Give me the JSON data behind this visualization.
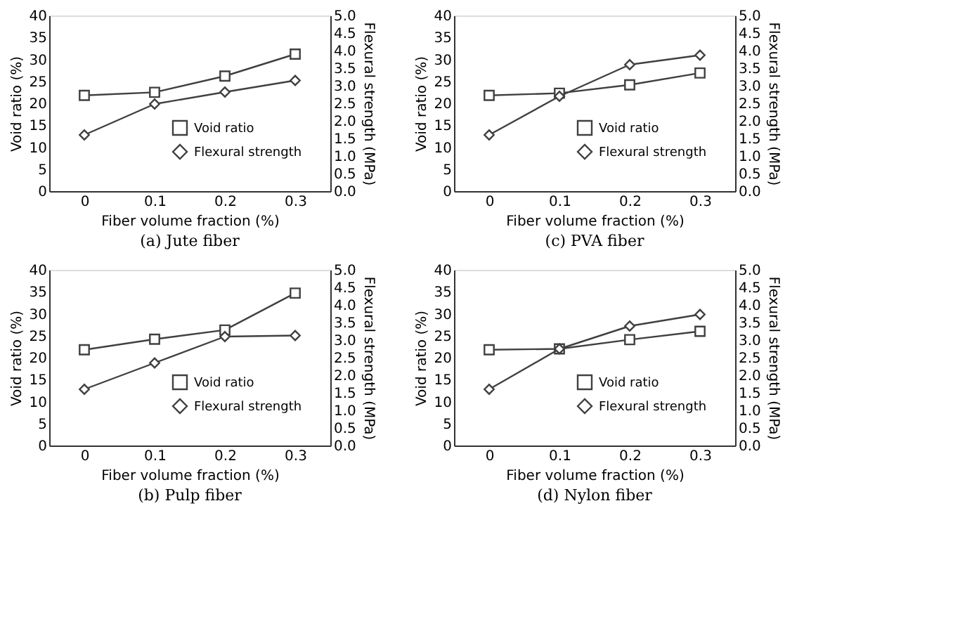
{
  "chart_data": [
    {
      "type": "line",
      "title": "(a) Jute fiber",
      "xlabel": "Fiber volume fraction (%)",
      "ylabel": "Void ratio (%)",
      "y2label": "Flexural strength (MPa)",
      "categories": [
        "0",
        "0.1",
        "0.2",
        "0.3"
      ],
      "ylim": [
        0,
        40
      ],
      "yticks": [
        0,
        5,
        10,
        15,
        20,
        25,
        30,
        35,
        40
      ],
      "y2lim": [
        0,
        5
      ],
      "y2ticks": [
        {
          "value": 0,
          "label": "0.0"
        },
        0.5,
        {
          "value": 1,
          "label": "1.0"
        },
        1.5,
        {
          "value": 2,
          "label": "2.0"
        },
        2.5,
        {
          "value": 3,
          "label": "3.0"
        },
        3.5,
        {
          "value": 4,
          "label": "4.0"
        },
        4.5,
        {
          "value": 5,
          "label": "5.0"
        }
      ],
      "grid": false,
      "legend": "bottom right",
      "series": [
        {
          "name": "Void ratio",
          "color": "#404040",
          "marker": "square",
          "values": [
            21.8,
            22.5,
            26.2,
            31.2
          ]
        },
        {
          "name": "Flexural strength",
          "color": "#404040",
          "marker": "diamond",
          "axis": "y2",
          "values": [
            1.6,
            2.48,
            2.82,
            3.15
          ]
        }
      ]
    },
    {
      "type": "line",
      "title": "(c) PVA fiber",
      "xlabel": "Fiber volume fraction (%)",
      "ylabel": "Void ratio (%)",
      "y2label": "Flexural strength (MPa)",
      "categories": [
        "0",
        "0.1",
        "0.2",
        "0.3"
      ],
      "ylim": [
        0,
        40
      ],
      "yticks": [
        0,
        5,
        10,
        15,
        20,
        25,
        30,
        35,
        40
      ],
      "y2lim": [
        0,
        5
      ],
      "y2ticks": [
        {
          "value": 0,
          "label": "0.0"
        },
        0.5,
        {
          "value": 1,
          "label": "1.0"
        },
        1.5,
        {
          "value": 2,
          "label": "2.0"
        },
        2.5,
        {
          "value": 3,
          "label": "3.0"
        },
        3.5,
        {
          "value": 4,
          "label": "4.0"
        },
        4.5,
        {
          "value": 5,
          "label": "5.0"
        }
      ],
      "grid": false,
      "legend": "bottom right",
      "series": [
        {
          "name": "Void ratio",
          "color": "#404040",
          "marker": "square",
          "values": [
            21.8,
            22.3,
            24.2,
            26.9
          ]
        },
        {
          "name": "Flexural strength",
          "color": "#404040",
          "marker": "diamond",
          "axis": "y2",
          "values": [
            1.6,
            2.7,
            3.6,
            3.87
          ]
        }
      ]
    },
    {
      "type": "line",
      "title": "(b) Pulp fiber",
      "xlabel": "Fiber volume fraction (%)",
      "ylabel": "Void ratio (%)",
      "y2label": "Flexural strength (MPa)",
      "categories": [
        "0",
        "0.1",
        "0.2",
        "0.3"
      ],
      "ylim": [
        0,
        40
      ],
      "yticks": [
        0,
        5,
        10,
        15,
        20,
        25,
        30,
        35,
        40
      ],
      "y2lim": [
        0,
        5
      ],
      "y2ticks": [
        {
          "value": 0,
          "label": "0.0"
        },
        0.5,
        {
          "value": 1,
          "label": "1.0"
        },
        1.5,
        {
          "value": 2,
          "label": "2.0"
        },
        2.5,
        {
          "value": 3,
          "label": "3.0"
        },
        3.5,
        {
          "value": 4,
          "label": "4.0"
        },
        4.5,
        {
          "value": 5,
          "label": "5.0"
        }
      ],
      "grid": false,
      "legend": "bottom right",
      "series": [
        {
          "name": "Void ratio",
          "color": "#404040",
          "marker": "square",
          "values": [
            21.8,
            24.2,
            26.3,
            34.7
          ]
        },
        {
          "name": "Flexural strength",
          "color": "#404040",
          "marker": "diamond",
          "axis": "y2",
          "values": [
            1.6,
            2.35,
            3.1,
            3.13
          ]
        }
      ]
    },
    {
      "type": "line",
      "title": "(d) Nylon fiber",
      "xlabel": "Fiber volume fraction (%)",
      "ylabel": "Void ratio (%)",
      "y2label": "Flexural strength (MPa)",
      "categories": [
        "0",
        "0.1",
        "0.2",
        "0.3"
      ],
      "ylim": [
        0,
        40
      ],
      "yticks": [
        0,
        5,
        10,
        15,
        20,
        25,
        30,
        35,
        40
      ],
      "y2lim": [
        0,
        5
      ],
      "y2ticks": [
        {
          "value": 0,
          "label": "0.0"
        },
        0.5,
        {
          "value": 1,
          "label": "1.0"
        },
        1.5,
        {
          "value": 2,
          "label": "2.0"
        },
        2.5,
        {
          "value": 3,
          "label": "3.0"
        },
        3.5,
        {
          "value": 4,
          "label": "4.0"
        },
        4.5,
        {
          "value": 5,
          "label": "5.0"
        }
      ],
      "grid": false,
      "legend": "bottom right",
      "series": [
        {
          "name": "Void ratio",
          "color": "#404040",
          "marker": "square",
          "values": [
            21.8,
            22.0,
            24.1,
            26.0
          ]
        },
        {
          "name": "Flexural strength",
          "color": "#404040",
          "marker": "diamond",
          "axis": "y2",
          "values": [
            1.6,
            2.75,
            3.4,
            3.73
          ]
        }
      ]
    }
  ]
}
